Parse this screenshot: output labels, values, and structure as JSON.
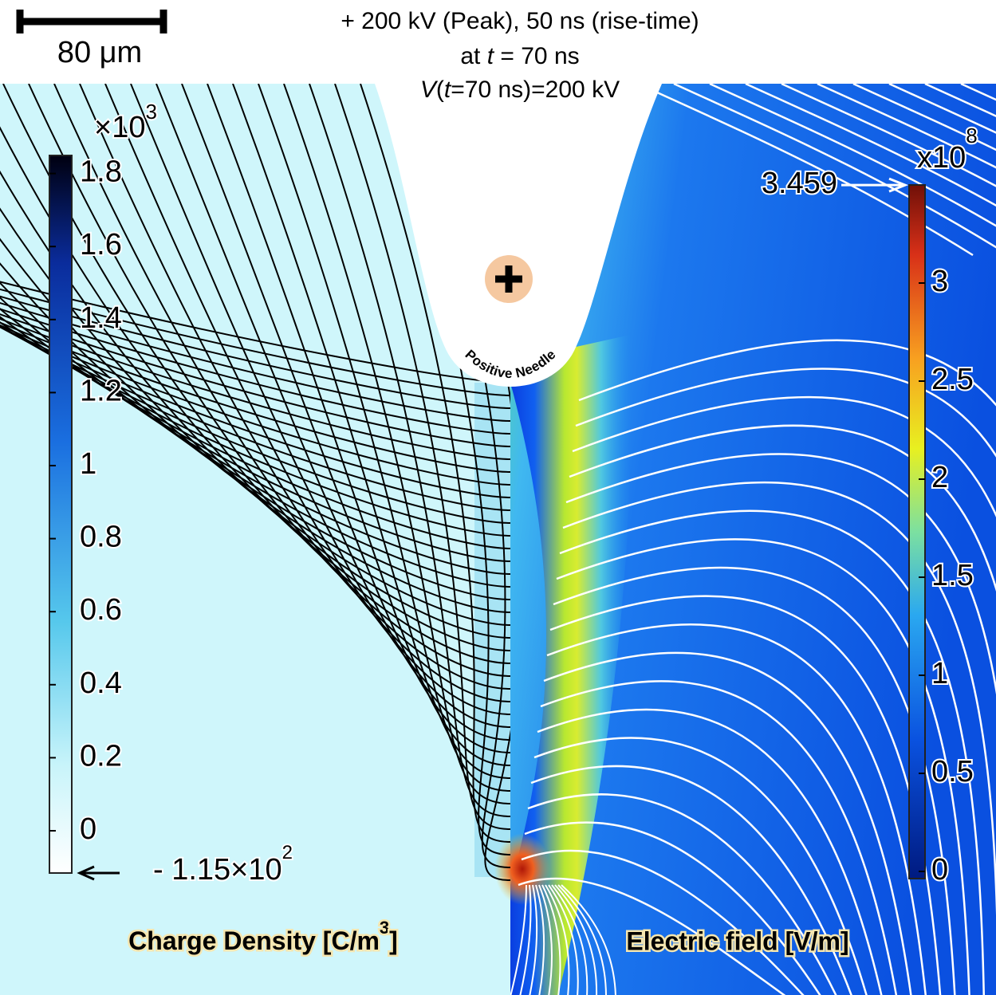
{
  "header": {
    "line1": "+ 200 kV (Peak), 50 ns (rise-time)",
    "line2": [
      "at ",
      "t",
      " = 70 ns"
    ],
    "line3": [
      "V",
      "(",
      "t",
      "=70 ns)=200 kV"
    ]
  },
  "scale_bar": {
    "label": "80 μm"
  },
  "needle_label": "Positive Needle",
  "charge_density": {
    "title": "Charge Density [C/m",
    "title_exp": "3",
    "title_end": "]",
    "multiplier": "×10",
    "multiplier_exp": "3",
    "ticks": [
      0,
      0.2,
      0.4,
      0.6,
      0.8,
      1,
      1.2,
      1.4,
      1.6,
      1.8
    ],
    "min_label": "- 1.15×10",
    "min_label_exp": "2"
  },
  "electric_field": {
    "title": "Electric field [V/m]",
    "multiplier": "x10",
    "multiplier_exp": "8",
    "ticks": [
      0,
      0.5,
      1,
      1.5,
      2,
      2.5,
      3
    ],
    "max_label": 3.459
  }
}
